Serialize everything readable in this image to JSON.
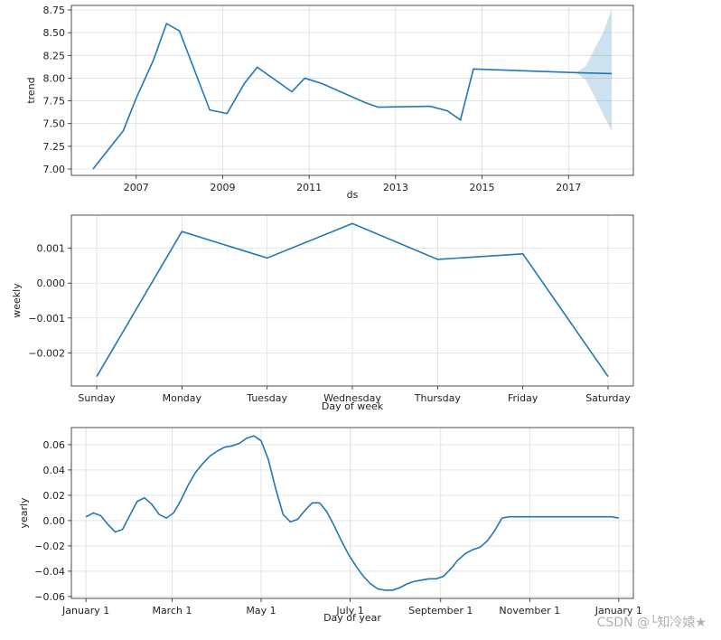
{
  "chart_data": [
    {
      "type": "line",
      "id": "trend",
      "title": "",
      "xlabel": "ds",
      "ylabel": "trend",
      "xlim": [
        2005.5,
        2018.5
      ],
      "ylim": [
        6.93,
        8.8
      ],
      "xticks": [
        2007,
        2009,
        2011,
        2013,
        2015,
        2017
      ],
      "xtick_labels": [
        "2007",
        "2009",
        "2011",
        "2013",
        "2015",
        "2017"
      ],
      "yticks": [
        7.0,
        7.25,
        7.5,
        7.75,
        8.0,
        8.25,
        8.5,
        8.75
      ],
      "ytick_labels": [
        "7.00",
        "7.25",
        "7.50",
        "7.75",
        "8.00",
        "8.25",
        "8.50",
        "8.75"
      ],
      "x": [
        2006.0,
        2006.7,
        2007.0,
        2007.4,
        2007.7,
        2008.0,
        2008.7,
        2009.1,
        2009.5,
        2009.8,
        2010.6,
        2010.9,
        2011.3,
        2012.3,
        2012.6,
        2013.8,
        2014.2,
        2014.5,
        2014.8,
        2017.2,
        2018.0
      ],
      "values": [
        7.0,
        7.42,
        7.78,
        8.2,
        8.6,
        8.52,
        7.65,
        7.61,
        7.94,
        8.12,
        7.85,
        8.0,
        7.94,
        7.73,
        7.68,
        7.69,
        7.64,
        7.54,
        8.1,
        8.06,
        8.05
      ],
      "uncertainty": {
        "x": [
          2017.2,
          2017.4,
          2017.6,
          2017.8,
          2018.0
        ],
        "lower": [
          8.05,
          7.98,
          7.8,
          7.6,
          7.42
        ],
        "upper": [
          8.07,
          8.13,
          8.32,
          8.5,
          8.76
        ]
      }
    },
    {
      "type": "line",
      "id": "weekly",
      "title": "",
      "xlabel": "Day of week",
      "ylabel": "weekly",
      "ylim": [
        -0.00295,
        0.00195
      ],
      "categories": [
        "Sunday",
        "Monday",
        "Tuesday",
        "Wednesday",
        "Thursday",
        "Friday",
        "Saturday"
      ],
      "values": [
        -0.00268,
        0.00148,
        0.00072,
        0.00171,
        0.00068,
        0.00084,
        -0.00268
      ],
      "yticks": [
        -0.002,
        -0.001,
        0.0,
        0.001
      ],
      "ytick_labels": [
        "−0.002",
        "−0.001",
        "0.000",
        "0.001"
      ]
    },
    {
      "type": "line",
      "id": "yearly",
      "title": "",
      "xlabel": "Day of year",
      "ylabel": "yearly",
      "xlim": [
        -10,
        375
      ],
      "ylim": [
        -0.0615,
        0.0735
      ],
      "xticks": [
        0,
        59,
        120,
        181,
        243,
        304,
        365
      ],
      "xtick_labels": [
        "January 1",
        "March 1",
        "May 1",
        "July 1",
        "September 1",
        "November 1",
        "January 1"
      ],
      "yticks": [
        -0.06,
        -0.04,
        -0.02,
        0.0,
        0.02,
        0.04,
        0.06
      ],
      "ytick_labels": [
        "−0.06",
        "−0.04",
        "−0.02",
        "0.00",
        "0.02",
        "0.04",
        "0.06"
      ],
      "x": [
        0,
        5,
        10,
        15,
        20,
        25,
        30,
        35,
        40,
        45,
        50,
        55,
        60,
        65,
        70,
        75,
        80,
        85,
        90,
        95,
        100,
        105,
        110,
        115,
        120,
        125,
        130,
        135,
        140,
        145,
        150,
        155,
        160,
        165,
        170,
        175,
        180,
        185,
        190,
        195,
        200,
        205,
        210,
        215,
        220,
        225,
        230,
        235,
        240,
        245,
        250,
        255,
        260,
        265,
        270,
        275,
        280,
        285,
        290,
        295,
        300,
        305,
        310,
        315,
        320,
        325,
        330,
        335,
        340,
        345,
        350,
        355,
        360,
        365
      ],
      "values": [
        0.003,
        0.006,
        0.004,
        -0.003,
        -0.009,
        -0.007,
        0.004,
        0.015,
        0.018,
        0.013,
        0.005,
        0.002,
        0.006,
        0.016,
        0.028,
        0.038,
        0.045,
        0.051,
        0.055,
        0.058,
        0.059,
        0.061,
        0.065,
        0.067,
        0.063,
        0.048,
        0.025,
        0.005,
        -0.001,
        0.001,
        0.008,
        0.014,
        0.014,
        0.007,
        -0.004,
        -0.016,
        -0.027,
        -0.036,
        -0.044,
        -0.05,
        -0.054,
        -0.055,
        -0.055,
        -0.053,
        -0.05,
        -0.048,
        -0.047,
        -0.046,
        -0.046,
        -0.044,
        -0.038,
        -0.031,
        -0.026,
        -0.023,
        -0.021,
        -0.016,
        -0.008,
        0.002,
        0.003,
        0.003,
        0.003,
        0.003,
        0.003,
        0.003,
        0.003,
        0.003,
        0.003,
        0.003,
        0.003,
        0.003,
        0.003,
        0.003,
        0.003,
        0.002
      ]
    }
  ],
  "watermark": "CSDN @└知冷媴★"
}
